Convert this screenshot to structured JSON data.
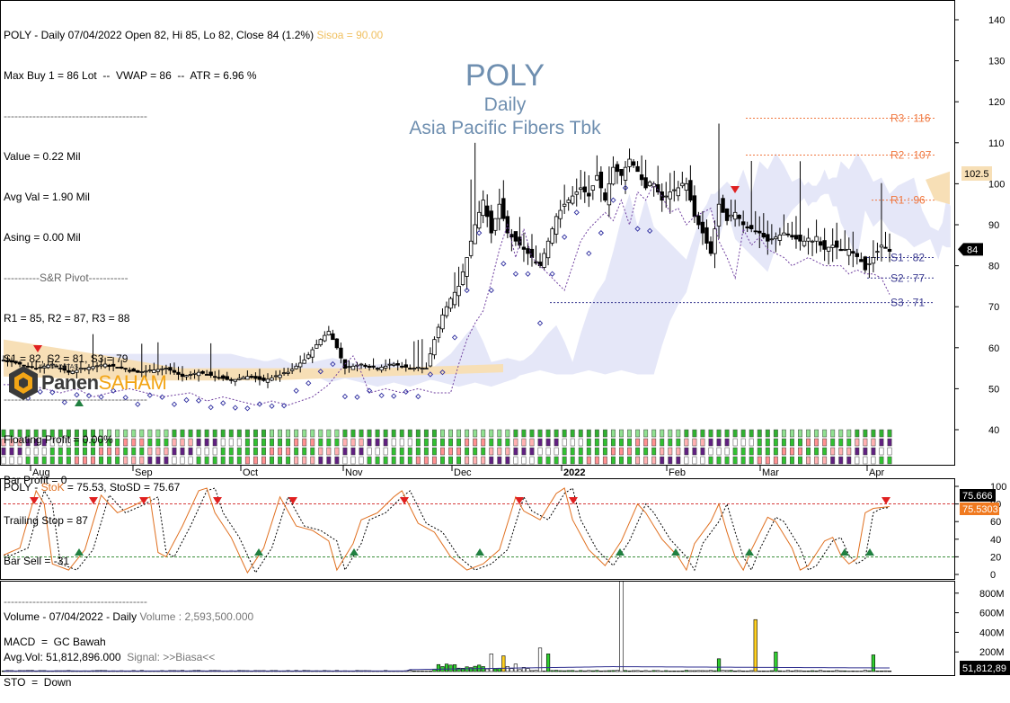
{
  "header": {
    "line1_main": "POLY - Daily 07/04/2022 Open 82, Hi 85, Lo 82, Close 84 (1.2%)",
    "line1_extra": "Sisoa = 90.00",
    "line2": "Max Buy 1 = 86 Lot  --  VWAP = 86  --  ATR = 6.96 %",
    "sep1": "----------------------------------------",
    "value": "Value = 0.22 Mil",
    "avg_val": "Avg Val = 1.90 Mil",
    "asing": "Asing = 0.00 Mil",
    "pivot_header": "----------S&R Pivot-----------",
    "r_line": "R1 = 85, R2 = 87, R3 = 88",
    "s_line": "S1 = 82, S2 = 81, S3 = 79",
    "sep2": "----------------------------------------",
    "floating_profit": "Floating Profit = 0.00%",
    "bar_profit": "Bar Profit = 0",
    "trailing_stop": "Trailing Stop = 87",
    "bar_sell": "Bar Sell = -31",
    "sep3": "----------------------------------------",
    "macd": "MACD  =  GC Bawah",
    "sto": "STO  =  Down"
  },
  "title": {
    "ticker": "POLY",
    "period": "Daily",
    "company": "Asia Pacific Fibers Tbk"
  },
  "logo": {
    "small_text": "KOMUNITAS",
    "name_part1": "Panen",
    "name_part2": "SAHAM"
  },
  "colors": {
    "up": "#ffffff",
    "down": "#000000",
    "resistance": "#f07840",
    "support": "#3a3a90",
    "stoch_k": "#e07020",
    "cloud_bull": "#f5ddb0",
    "cloud_bear": "#d7dcf5"
  },
  "chart_data": [
    {
      "type": "candlestick",
      "y_axis_ticks": [
        "140",
        "130",
        "120",
        "110",
        "100",
        "90",
        "80",
        "70",
        "60",
        "50",
        "40"
      ],
      "ylim": [
        35,
        145
      ],
      "x_axis_ticks": [
        "Aug",
        "Sep",
        "Oct",
        "Nov",
        "Dec",
        "2022",
        "Feb",
        "Mar",
        "Apr"
      ],
      "last_price_label": "84",
      "price_tag": "102.5",
      "levels": [
        {
          "name": "R3",
          "label": "R3 : 116",
          "value": 116
        },
        {
          "name": "R2",
          "label": "R2 : 107",
          "value": 107
        },
        {
          "name": "R1",
          "label": "R1 : 96",
          "value": 96
        },
        {
          "name": "S1",
          "label": "S1 : 82",
          "value": 82
        },
        {
          "name": "S2",
          "label": "S2 : 77",
          "value": 77
        },
        {
          "name": "S3",
          "label": "S3 : 71",
          "value": 71
        }
      ],
      "close_path": [
        [
          0,
          57
        ],
        [
          8,
          55
        ],
        [
          12,
          56
        ],
        [
          16,
          54
        ],
        [
          20,
          55
        ],
        [
          25,
          56
        ],
        [
          29,
          55
        ],
        [
          33,
          54
        ],
        [
          40,
          55
        ],
        [
          44,
          53
        ],
        [
          48,
          54
        ],
        [
          52,
          53
        ],
        [
          56,
          52
        ],
        [
          60,
          53
        ],
        [
          64,
          52
        ],
        [
          70,
          54
        ],
        [
          74,
          57
        ],
        [
          78,
          62
        ],
        [
          80,
          64
        ],
        [
          82,
          60
        ],
        [
          84,
          55
        ],
        [
          88,
          56
        ],
        [
          92,
          55
        ],
        [
          96,
          56
        ],
        [
          100,
          55
        ],
        [
          104,
          55
        ],
        [
          106,
          62
        ],
        [
          108,
          68
        ],
        [
          110,
          72
        ],
        [
          112,
          75
        ],
        [
          114,
          82
        ],
        [
          116,
          90
        ],
        [
          118,
          96
        ],
        [
          120,
          88
        ],
        [
          122,
          95
        ],
        [
          124,
          88
        ],
        [
          126,
          86
        ],
        [
          128,
          84
        ],
        [
          130,
          82
        ],
        [
          132,
          80
        ],
        [
          134,
          86
        ],
        [
          136,
          92
        ],
        [
          138,
          95
        ],
        [
          140,
          97
        ],
        [
          142,
          99
        ],
        [
          144,
          97
        ],
        [
          146,
          102
        ],
        [
          148,
          96
        ],
        [
          150,
          104
        ],
        [
          152,
          102
        ],
        [
          154,
          106
        ],
        [
          156,
          103
        ],
        [
          158,
          99
        ],
        [
          160,
          100
        ],
        [
          162,
          96
        ],
        [
          164,
          98
        ],
        [
          166,
          99
        ],
        [
          168,
          100
        ],
        [
          170,
          92
        ],
        [
          172,
          88
        ],
        [
          174,
          83
        ],
        [
          176,
          95
        ],
        [
          178,
          91
        ],
        [
          180,
          93
        ],
        [
          182,
          90
        ],
        [
          184,
          89
        ],
        [
          186,
          88
        ],
        [
          188,
          86
        ],
        [
          190,
          87
        ],
        [
          192,
          88
        ],
        [
          194,
          87
        ],
        [
          196,
          86
        ],
        [
          198,
          86
        ],
        [
          200,
          86
        ],
        [
          202,
          84
        ],
        [
          204,
          85
        ],
        [
          206,
          84
        ],
        [
          208,
          84
        ],
        [
          210,
          83
        ],
        [
          212,
          79
        ],
        [
          214,
          82
        ],
        [
          216,
          85
        ],
        [
          218,
          84
        ]
      ]
    },
    {
      "type": "line",
      "title_prefix": "POLY - ",
      "k_label": "StoK",
      "header_values": " = 75.53, StoSD = 75.67",
      "y_axis_ticks": [
        "100",
        "80",
        "60",
        "40",
        "20",
        "0"
      ],
      "ylim": [
        0,
        100
      ],
      "overbought": 80,
      "oversold": 20,
      "k_tag": "75.5303",
      "d_tag": "75.666",
      "k_path": [
        [
          0,
          22
        ],
        [
          4,
          30
        ],
        [
          8,
          95
        ],
        [
          10,
          80
        ],
        [
          12,
          12
        ],
        [
          16,
          5
        ],
        [
          20,
          28
        ],
        [
          24,
          90
        ],
        [
          28,
          70
        ],
        [
          32,
          78
        ],
        [
          36,
          88
        ],
        [
          38,
          25
        ],
        [
          40,
          20
        ],
        [
          44,
          55
        ],
        [
          48,
          95
        ],
        [
          50,
          98
        ],
        [
          52,
          70
        ],
        [
          56,
          42
        ],
        [
          60,
          2
        ],
        [
          64,
          30
        ],
        [
          68,
          88
        ],
        [
          72,
          55
        ],
        [
          76,
          50
        ],
        [
          80,
          38
        ],
        [
          82,
          5
        ],
        [
          86,
          35
        ],
        [
          88,
          62
        ],
        [
          92,
          70
        ],
        [
          96,
          88
        ],
        [
          98,
          95
        ],
        [
          102,
          58
        ],
        [
          106,
          48
        ],
        [
          110,
          20
        ],
        [
          114,
          5
        ],
        [
          118,
          12
        ],
        [
          122,
          28
        ],
        [
          126,
          88
        ],
        [
          128,
          72
        ],
        [
          132,
          62
        ],
        [
          136,
          92
        ],
        [
          138,
          98
        ],
        [
          140,
          62
        ],
        [
          144,
          28
        ],
        [
          148,
          10
        ],
        [
          152,
          38
        ],
        [
          156,
          80
        ],
        [
          158,
          70
        ],
        [
          162,
          40
        ],
        [
          166,
          20
        ],
        [
          168,
          5
        ],
        [
          170,
          35
        ],
        [
          174,
          60
        ],
        [
          176,
          80
        ],
        [
          178,
          48
        ],
        [
          180,
          20
        ],
        [
          182,
          5
        ],
        [
          184,
          28
        ],
        [
          188,
          65
        ],
        [
          190,
          60
        ],
        [
          194,
          30
        ],
        [
          196,
          5
        ],
        [
          198,
          10
        ],
        [
          202,
          38
        ],
        [
          204,
          42
        ],
        [
          206,
          22
        ],
        [
          208,
          12
        ],
        [
          210,
          18
        ],
        [
          212,
          70
        ],
        [
          214,
          75
        ],
        [
          218,
          77
        ]
      ]
    },
    {
      "type": "bar",
      "title": "Volume - 07/04/2022 - Daily",
      "header_volume": "Volume : 2,593,500.000",
      "avg_vol": "Avg.Vol: 51,812,896.000",
      "signal": "Signal: >>Biasa<<",
      "y_axis_ticks": [
        "800M",
        "600M",
        "400M",
        "200M"
      ],
      "avg_tag": "51,812,89"
    }
  ]
}
